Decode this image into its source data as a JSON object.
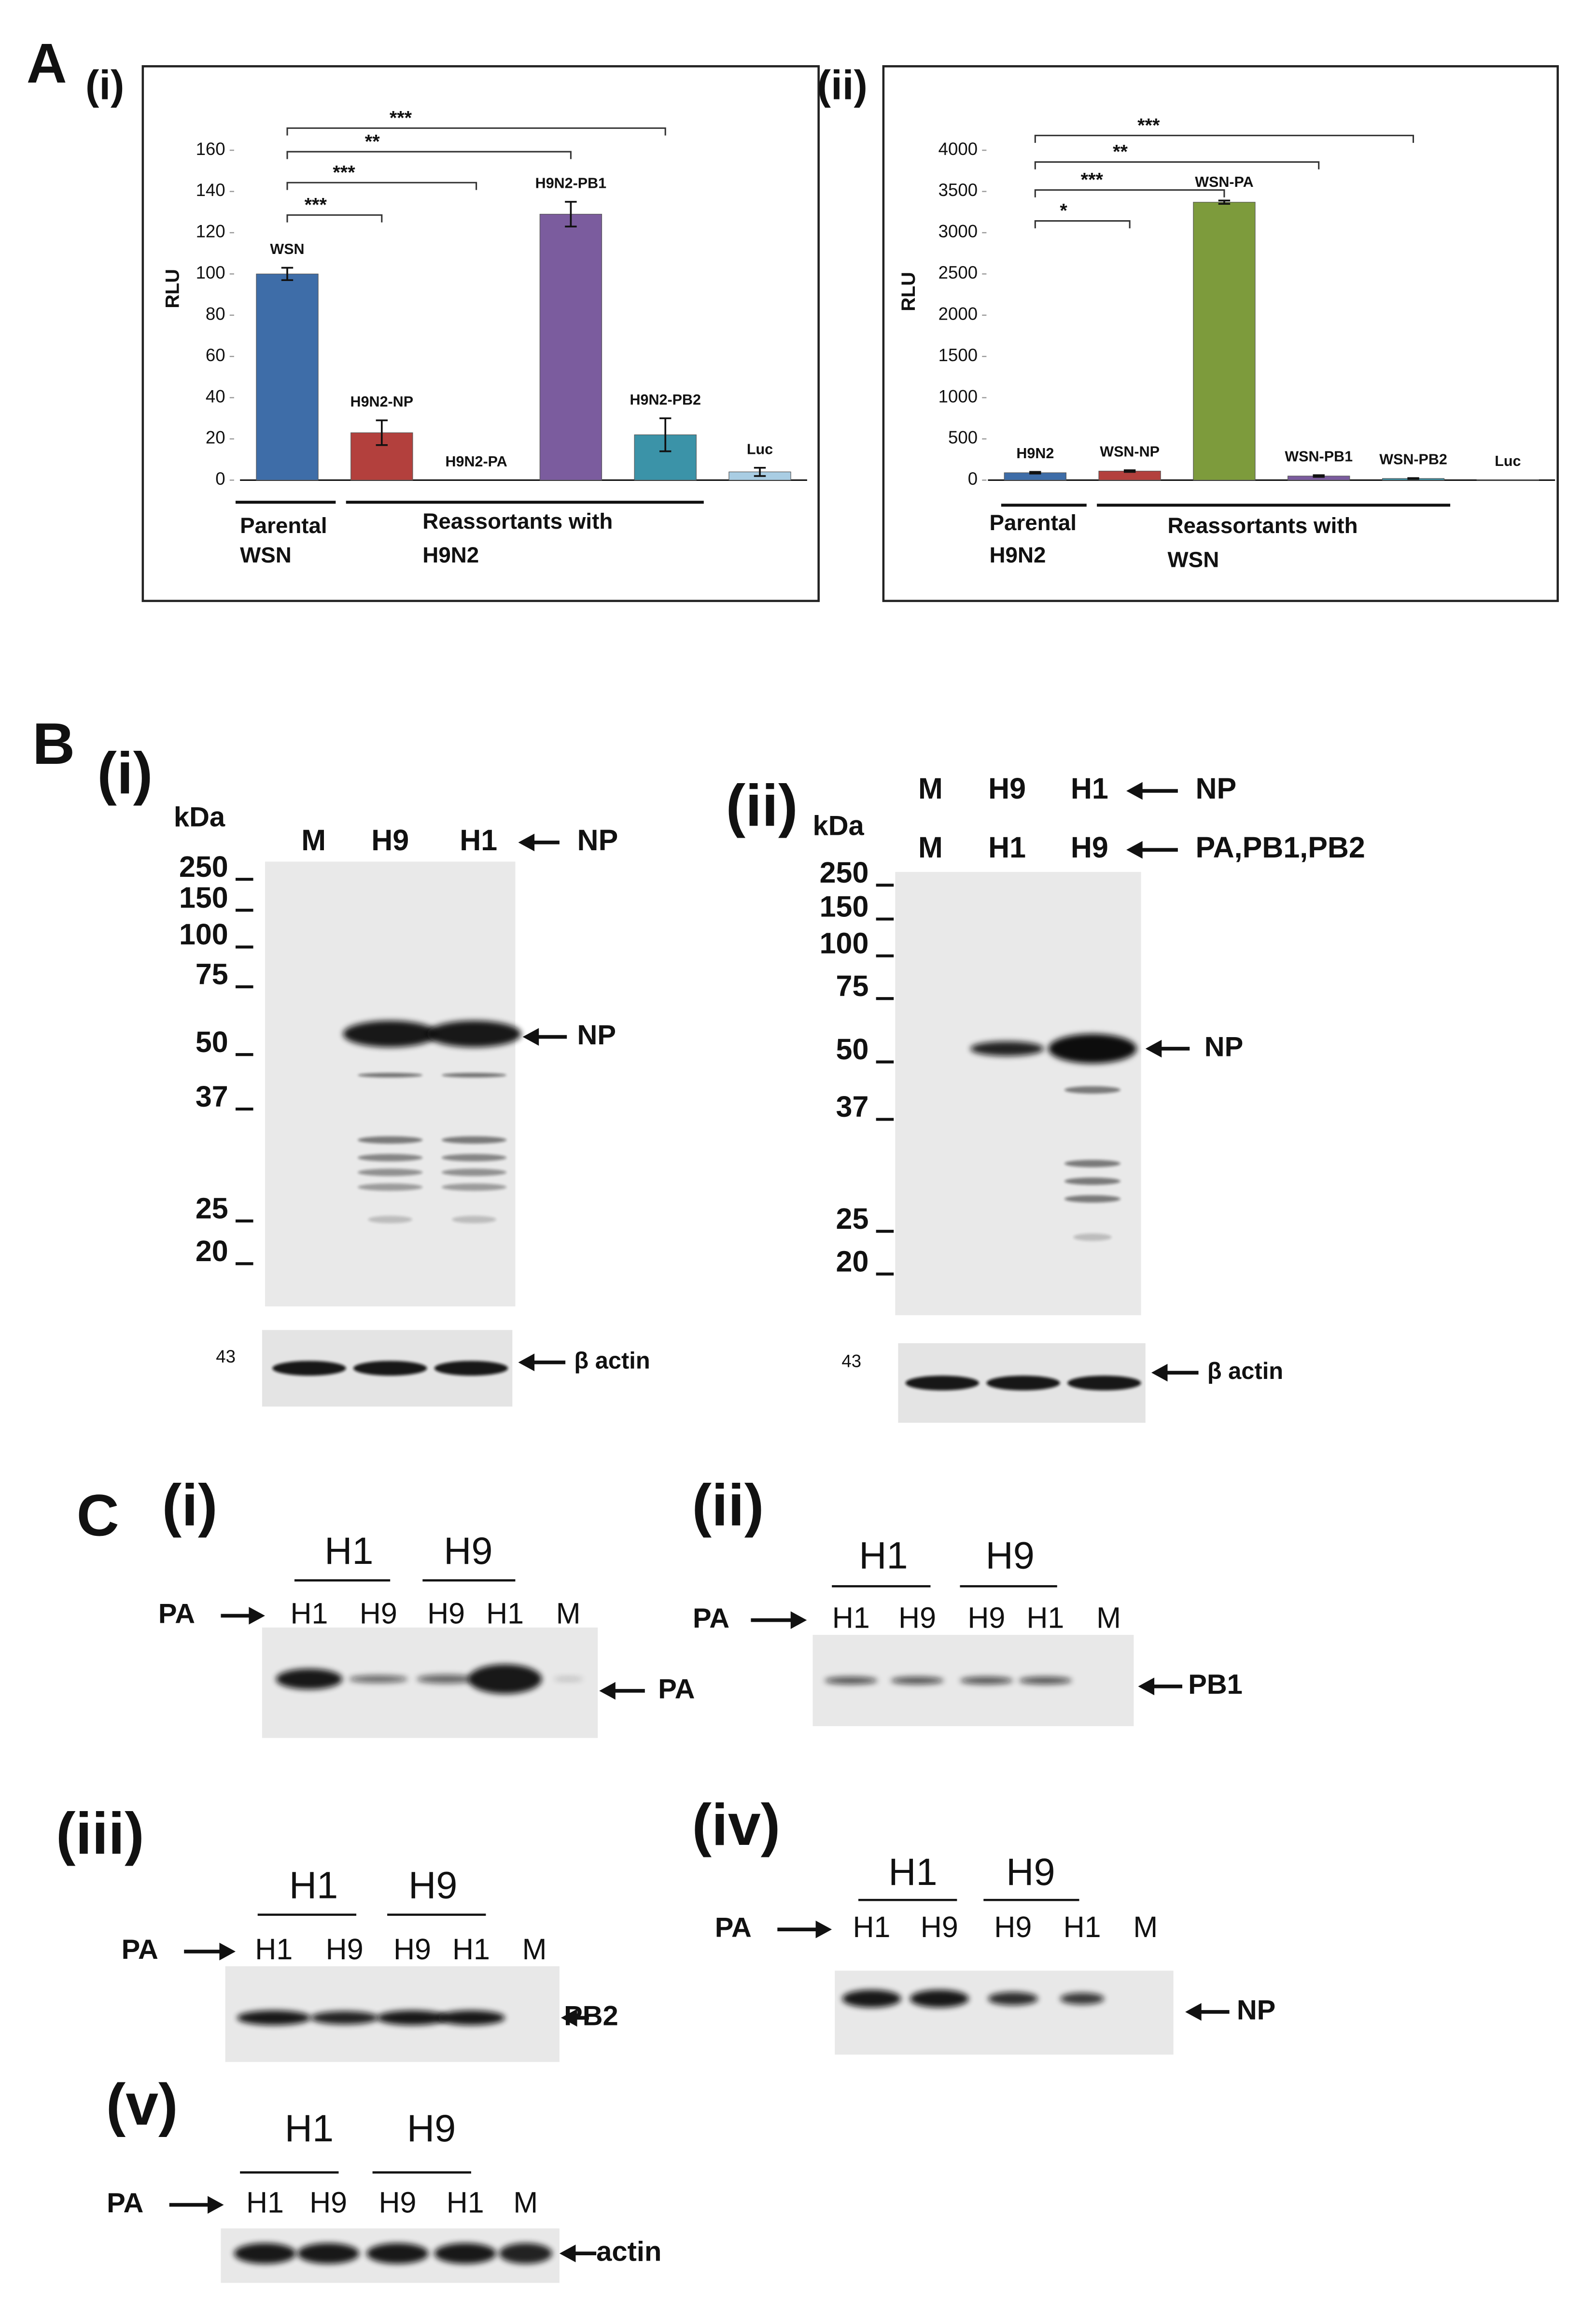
{
  "panel_a": "A",
  "chart_data": [
    {
      "type": "bar",
      "label": "(i)",
      "ylabel": "RLU",
      "categories": [
        "WSN",
        "H9N2-NP",
        "H9N2-PA",
        "H9N2-PB1",
        "H9N2-PB2",
        "Luc"
      ],
      "values": [
        100,
        23,
        0,
        129,
        22,
        4
      ],
      "errors": [
        3,
        6,
        null,
        6,
        8,
        2
      ],
      "colors": [
        "#3e6da8",
        "#b3403d",
        "#7f62a0",
        "#7b5c9e",
        "#3b93a8",
        "#a9cde3"
      ],
      "ylim": [
        0,
        160
      ],
      "yticks": [
        0,
        20,
        40,
        60,
        80,
        100,
        120,
        140,
        160
      ],
      "annotations": [
        "***",
        "***",
        "**",
        "***"
      ],
      "groups": [
        [
          "Parental",
          "WSN"
        ],
        [
          "Reassortants with",
          "H9N2"
        ]
      ]
    },
    {
      "type": "bar",
      "label": "(ii)",
      "ylabel": "RLU",
      "categories": [
        "H9N2",
        "WSN-NP",
        "WSN-PA",
        "WSN-PB1",
        "WSN-PB2",
        "Luc"
      ],
      "values": [
        90,
        110,
        3370,
        50,
        20,
        5
      ],
      "errors": [
        10,
        10,
        20,
        10,
        5,
        null
      ],
      "colors": [
        "#3e6da8",
        "#b3403d",
        "#7d9b3c",
        "#7b5c9e",
        "#3b93a8",
        "#a9cde3"
      ],
      "ylim": [
        0,
        4000
      ],
      "yticks": [
        0,
        500,
        1000,
        1500,
        2000,
        2500,
        3000,
        3500,
        4000
      ],
      "annotations": [
        "*",
        "***",
        "**",
        "***"
      ],
      "groups": [
        [
          "Parental",
          "H9N2"
        ],
        [
          "Reassortants with",
          "WSN"
        ]
      ]
    }
  ],
  "blots_b": {
    "letter": "B",
    "panels": [
      {
        "label": "(i)",
        "unit": "kDa",
        "markers": [
          250,
          150,
          100,
          75,
          50,
          37,
          25,
          20
        ],
        "lane_rows": [
          {
            "lanes": [
              "M",
              "H9",
              "H1"
            ],
            "target": "NP"
          }
        ],
        "band": "NP",
        "loading_marker": 43,
        "loading": "β actin"
      },
      {
        "label": "(ii)",
        "unit": "kDa",
        "markers": [
          250,
          150,
          100,
          75,
          50,
          37,
          25,
          20
        ],
        "lane_rows": [
          {
            "lanes": [
              "M",
              "H9",
              "H1"
            ],
            "target": "NP"
          },
          {
            "lanes": [
              "M",
              "H1",
              "H9"
            ],
            "target": "PA,PB1,PB2"
          }
        ],
        "band": "NP",
        "loading_marker": 43,
        "loading": "β actin"
      }
    ]
  },
  "blots_c": {
    "letter": "C",
    "panels": [
      {
        "label": "(i)",
        "groups": [
          "H1",
          "H9"
        ],
        "row_label": "PA",
        "lanes": [
          "H1",
          "H9",
          "H9",
          "H1",
          "M"
        ],
        "band": "PA"
      },
      {
        "label": "(ii)",
        "groups": [
          "H1",
          "H9"
        ],
        "row_label": "PA",
        "lanes": [
          "H1",
          "H9",
          "H9",
          "H1",
          "M"
        ],
        "band": "PB1"
      },
      {
        "label": "(iii)",
        "groups": [
          "H1",
          "H9"
        ],
        "row_label": "PA",
        "lanes": [
          "H1",
          "H9",
          "H9",
          "H1",
          "M"
        ],
        "band": "PB2"
      },
      {
        "label": "(iv)",
        "groups": [
          "H1",
          "H9"
        ],
        "row_label": "PA",
        "lanes": [
          "H1",
          "H9",
          "H9",
          "H1",
          "M"
        ],
        "band": "NP"
      },
      {
        "label": "(v)",
        "groups": [
          "H1",
          "H9"
        ],
        "row_label": "PA",
        "lanes": [
          "H1",
          "H9",
          "H9",
          "H1",
          "M"
        ],
        "band": "actin"
      }
    ]
  }
}
